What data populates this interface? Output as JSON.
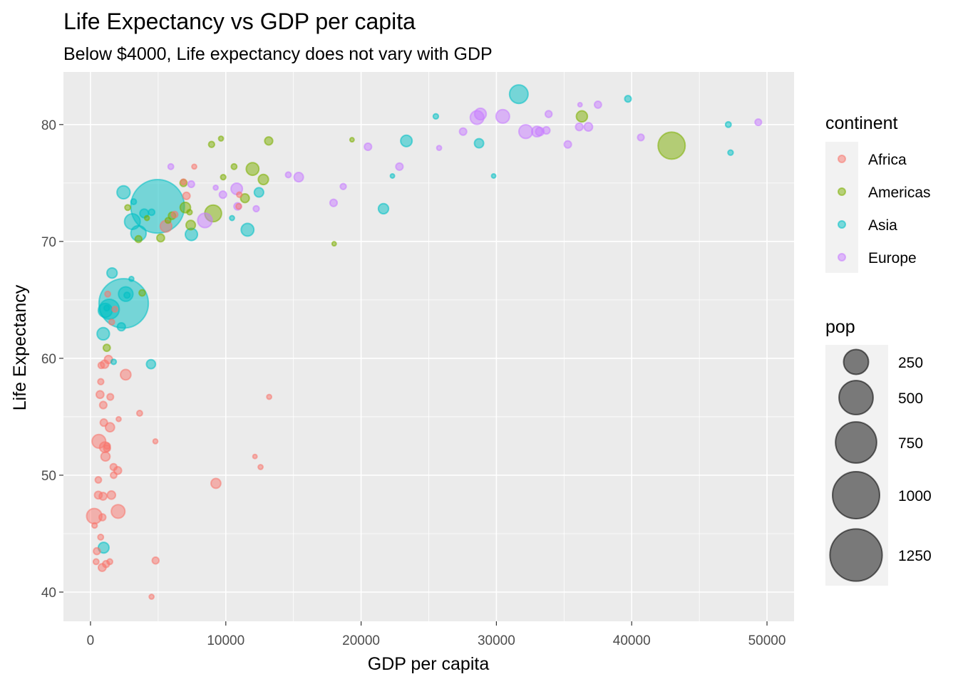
{
  "chart_data": {
    "type": "scatter",
    "title": "Life Expectancy vs GDP per capita",
    "subtitle": "Below $4000, Life expectancy does not vary with GDP",
    "xlabel": "GDP per capita",
    "ylabel": "Life Expectancy",
    "xlim": [
      -2000,
      52000
    ],
    "ylim": [
      37.5,
      84.5
    ],
    "x_ticks": [
      0,
      10000,
      20000,
      30000,
      40000,
      50000
    ],
    "y_ticks": [
      40,
      50,
      60,
      70,
      80
    ],
    "grid": true,
    "legend_position": "right",
    "color_legend": {
      "title": "continent",
      "entries": [
        {
          "label": "Africa",
          "color": "#F8766D"
        },
        {
          "label": "Americas",
          "color": "#7CAE00"
        },
        {
          "label": "Asia",
          "color": "#00BFC4"
        },
        {
          "label": "Europe",
          "color": "#C77CFF"
        }
      ]
    },
    "size_legend": {
      "title": "pop",
      "values": [
        250,
        500,
        750,
        1000,
        1250
      ],
      "labels": [
        "250",
        "500",
        "750",
        "1000",
        "1250"
      ]
    },
    "series": [
      {
        "name": "Africa",
        "points": [
          [
            278,
            46.5,
            80
          ],
          [
            471,
            43.5,
            8
          ],
          [
            580,
            48.3,
            12
          ],
          [
            620,
            52.9,
            60
          ],
          [
            706,
            56.9,
            12
          ],
          [
            760,
            58.0,
            5
          ],
          [
            797,
            59.4,
            6
          ],
          [
            863,
            42.1,
            12
          ],
          [
            883,
            46.4,
            8
          ],
          [
            926,
            48.2,
            12
          ],
          [
            943,
            56.0,
            10
          ],
          [
            986,
            54.5,
            10
          ],
          [
            1042,
            59.5,
            14
          ],
          [
            1060,
            52.4,
            30
          ],
          [
            1107,
            51.6,
            20
          ],
          [
            1217,
            52.3,
            8
          ],
          [
            1270,
            65.5,
            4
          ],
          [
            1328,
            59.9,
            14
          ],
          [
            1441,
            54.1,
            20
          ],
          [
            1463,
            56.7,
            7
          ],
          [
            1545,
            48.3,
            15
          ],
          [
            1570,
            63.1,
            4
          ],
          [
            1704,
            50.7,
            8
          ],
          [
            1803,
            64.2,
            4
          ],
          [
            2042,
            46.9,
            60
          ],
          [
            2013,
            50.4,
            12
          ],
          [
            2082,
            54.8,
            2
          ],
          [
            2602,
            58.6,
            30
          ],
          [
            3632,
            55.3,
            4
          ],
          [
            4797,
            52.9,
            2
          ],
          [
            4811,
            42.7,
            8
          ],
          [
            4513,
            39.6,
            2
          ],
          [
            5581,
            71.3,
            40
          ],
          [
            6223,
            72.3,
            6
          ],
          [
            7093,
            73.9,
            10
          ],
          [
            9270,
            49.3,
            25
          ],
          [
            10957,
            73.0,
            4
          ],
          [
            12154,
            51.6,
            1
          ],
          [
            12570,
            50.7,
            2
          ],
          [
            13206,
            56.7,
            2
          ],
          [
            6873,
            75.1,
            4
          ],
          [
            7670,
            76.4,
            2
          ],
          [
            11000,
            74.0,
            3
          ],
          [
            303,
            45.7,
            3
          ],
          [
            415,
            42.6,
            4
          ],
          [
            1150,
            42.4,
            8
          ],
          [
            1426,
            42.6,
            4
          ],
          [
            579,
            49.6,
            6
          ],
          [
            752,
            44.7,
            4
          ],
          [
            1226,
            52.5,
            6
          ],
          [
            1712,
            50.0,
            6
          ]
        ]
      },
      {
        "name": "Americas",
        "points": [
          [
            1202,
            60.9,
            9
          ],
          [
            2749,
            72.9,
            4
          ],
          [
            3548,
            70.2,
            8
          ],
          [
            4173,
            72.0,
            2
          ],
          [
            5187,
            70.3,
            12
          ],
          [
            5728,
            71.8,
            4
          ],
          [
            6025,
            72.2,
            10
          ],
          [
            6874,
            75.0,
            9
          ],
          [
            7008,
            72.9,
            30
          ],
          [
            7321,
            72.5,
            3
          ],
          [
            7408,
            71.4,
            22
          ],
          [
            8948,
            78.3,
            5
          ],
          [
            9066,
            72.4,
            100
          ],
          [
            9645,
            78.8,
            2
          ],
          [
            9809,
            75.5,
            3
          ],
          [
            10611,
            76.4,
            4
          ],
          [
            11415,
            73.7,
            18
          ],
          [
            11978,
            76.2,
            50
          ],
          [
            12779,
            75.3,
            28
          ],
          [
            13172,
            78.6,
            14
          ],
          [
            18008,
            69.8,
            1
          ],
          [
            19328,
            78.7,
            1
          ],
          [
            36319,
            80.7,
            35
          ],
          [
            42952,
            78.2,
            301
          ],
          [
            3820,
            65.6,
            6
          ]
        ]
      },
      {
        "name": "Asia",
        "points": [
          [
            974,
            43.8,
            32
          ],
          [
            944,
            62.1,
            47
          ],
          [
            1091,
            64.1,
            64
          ],
          [
            1391,
            64.2,
            150
          ],
          [
            1593,
            67.3,
            28
          ],
          [
            1713,
            59.7,
            3
          ],
          [
            2452,
            64.7,
            1111
          ],
          [
            2605,
            65.5,
            70
          ],
          [
            2281,
            62.7,
            14
          ],
          [
            3025,
            66.8,
            2
          ],
          [
            3095,
            71.7,
            85
          ],
          [
            3190,
            73.4,
            4
          ],
          [
            3548,
            70.7,
            80
          ],
          [
            3970,
            72.4,
            18
          ],
          [
            4471,
            59.5,
            20
          ],
          [
            4959,
            73.0,
            1319
          ],
          [
            2442,
            74.2,
            54
          ],
          [
            4519,
            72.5,
            6
          ],
          [
            7458,
            70.6,
            45
          ],
          [
            10461,
            72.0,
            2
          ],
          [
            11606,
            71.0,
            50
          ],
          [
            12452,
            74.2,
            22
          ],
          [
            21655,
            72.8,
            28
          ],
          [
            22316,
            75.6,
            1
          ],
          [
            23348,
            78.6,
            38
          ],
          [
            25523,
            80.7,
            3
          ],
          [
            28718,
            78.4,
            21
          ],
          [
            29796,
            75.6,
            1
          ],
          [
            31656,
            82.6,
            127
          ],
          [
            39725,
            82.2,
            7
          ],
          [
            47143,
            80.0,
            4
          ],
          [
            47307,
            77.6,
            3
          ],
          [
            1200,
            64.3,
            4
          ],
          [
            2700,
            65.4,
            5
          ]
        ]
      },
      {
        "name": "Europe",
        "points": [
          [
            5937,
            76.4,
            4
          ],
          [
            7446,
            74.9,
            7
          ],
          [
            8458,
            71.8,
            70
          ],
          [
            9787,
            74.0,
            10
          ],
          [
            10808,
            74.5,
            38
          ],
          [
            10870,
            73.0,
            10
          ],
          [
            9254,
            74.6,
            2
          ],
          [
            12248,
            72.8,
            5
          ],
          [
            14619,
            75.7,
            4
          ],
          [
            15390,
            75.5,
            22
          ],
          [
            17965,
            73.3,
            10
          ],
          [
            18679,
            74.7,
            5
          ],
          [
            20509,
            78.1,
            10
          ],
          [
            22834,
            76.4,
            10
          ],
          [
            25768,
            78.0,
            2
          ],
          [
            27538,
            79.4,
            10
          ],
          [
            28570,
            80.6,
            60
          ],
          [
            28821,
            80.9,
            40
          ],
          [
            30470,
            80.7,
            59
          ],
          [
            32170,
            79.4,
            61
          ],
          [
            33207,
            79.4,
            16
          ],
          [
            33693,
            79.5,
            10
          ],
          [
            33860,
            80.9,
            8
          ],
          [
            35278,
            78.3,
            10
          ],
          [
            36126,
            79.8,
            11
          ],
          [
            36798,
            79.8,
            16
          ],
          [
            36180,
            81.7,
            1
          ],
          [
            37506,
            81.7,
            9
          ],
          [
            40676,
            78.9,
            7
          ],
          [
            49357,
            80.2,
            7
          ],
          [
            33000,
            79.4,
            30
          ]
        ]
      }
    ]
  }
}
